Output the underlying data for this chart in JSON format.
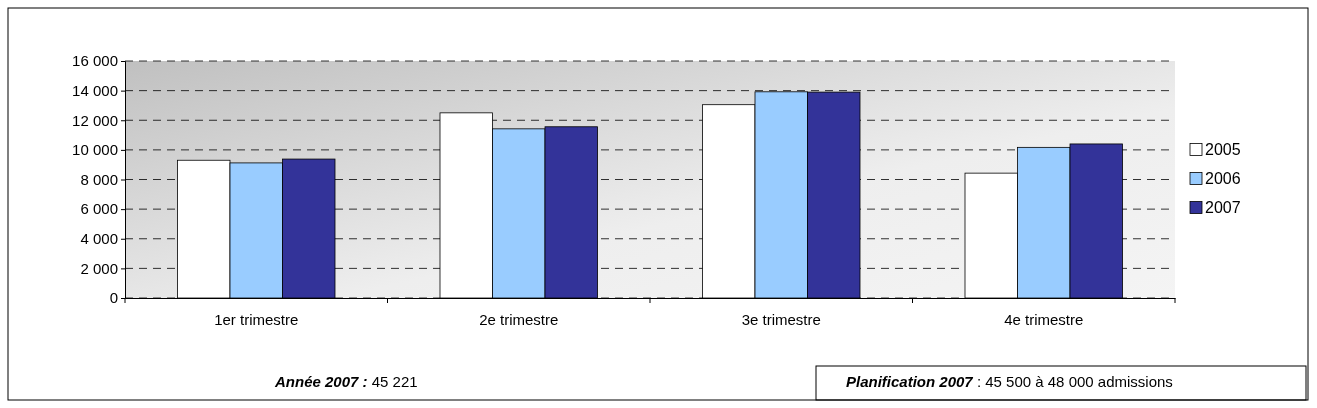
{
  "chart_data": {
    "type": "bar",
    "categories": [
      "1er trimestre",
      "2e trimestre",
      "3e trimestre",
      "4e trimestre"
    ],
    "series": [
      {
        "name": "2005",
        "color": "#ffffff",
        "values": [
          9300,
          12500,
          13050,
          8430
        ]
      },
      {
        "name": "2006",
        "color": "#99ccff",
        "values": [
          9120,
          11420,
          13920,
          10170
        ]
      },
      {
        "name": "2007",
        "color": "#333399",
        "values": [
          9380,
          11560,
          13900,
          10400
        ]
      }
    ],
    "ylim": [
      0,
      16000
    ],
    "yticks": [
      {
        "value": 0,
        "label": "0"
      },
      {
        "value": 2000,
        "label": "2 000"
      },
      {
        "value": 4000,
        "label": "4 000"
      },
      {
        "value": 6000,
        "label": "6 000"
      },
      {
        "value": 8000,
        "label": "8 000"
      },
      {
        "value": 10000,
        "label": "10 000"
      },
      {
        "value": 12000,
        "label": "12 000"
      },
      {
        "value": 14000,
        "label": "14 000"
      },
      {
        "value": 16000,
        "label": "16 000"
      }
    ],
    "grid": "y",
    "legend": "right",
    "annotations": [
      "Année 2007 : 45 221",
      "Planification 2007 : 45 500 à 48 000 admissions"
    ]
  }
}
